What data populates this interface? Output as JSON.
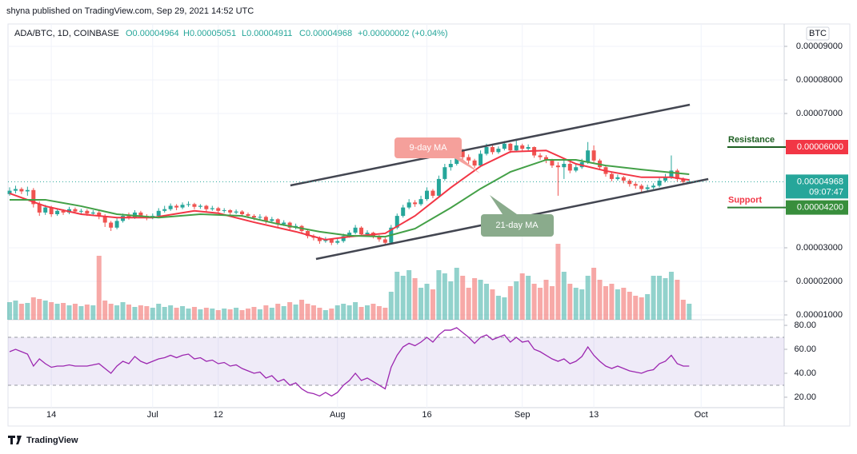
{
  "header": {
    "published": "shyna published on TradingView.com, Sep 29, 2021 14:52 UTC"
  },
  "chart_data": [
    {
      "type": "candlestick",
      "symbol": "ADA/BTC, 1D, COINBASE",
      "ohlc_legend": [
        "O0.00004964",
        "H0.00005051",
        "L0.00004911",
        "C0.00004968",
        "+0.00000002 (+0.04%)"
      ],
      "currency": "BTC",
      "xlim": [
        0,
        130
      ],
      "xticks": [
        {
          "value": 7,
          "label": "14"
        },
        {
          "value": 24,
          "label": "Jul"
        },
        {
          "value": 35,
          "label": "12"
        },
        {
          "value": 55,
          "label": "Aug"
        },
        {
          "value": 70,
          "label": "16"
        },
        {
          "value": 86,
          "label": "Sep"
        },
        {
          "value": 98,
          "label": "13"
        },
        {
          "value": 116,
          "label": "Oct"
        }
      ],
      "ylim": [
        8.57e-06,
        9.667e-05
      ],
      "yticks": [
        {
          "value": 9e-05,
          "label": "0.00009000"
        },
        {
          "value": 8e-05,
          "label": "0.00008000"
        },
        {
          "value": 7e-05,
          "label": "0.00007000"
        },
        {
          "value": 3e-05,
          "label": "0.00003000"
        },
        {
          "value": 2e-05,
          "label": "0.00002000"
        },
        {
          "value": 1e-05,
          "label": "0.00001000"
        }
      ],
      "grid": true,
      "up_color": "#26a69a",
      "down_color": "#ef5350",
      "open": [
        4.6e-05,
        4.7e-05,
        4.75e-05,
        4.68e-05,
        4.72e-05,
        4.3e-05,
        4.05e-05,
        4.2e-05,
        4e-05,
        4.1e-05,
        4.05e-05,
        4.15e-05,
        4.08e-05,
        4.1e-05,
        4.02e-05,
        4.05e-05,
        3.95e-05,
        3.75e-05,
        3.6e-05,
        3.8e-05,
        3.95e-05,
        3.9e-05,
        4.05e-05,
        3.95e-05,
        3.9e-05,
        3.95e-05,
        4.1e-05,
        4.15e-05,
        4.25e-05,
        4.2e-05,
        4.28e-05,
        4.3e-05,
        4.22e-05,
        4.25e-05,
        4.15e-05,
        4.18e-05,
        4.1e-05,
        4.12e-05,
        4.05e-05,
        4.08e-05,
        4e-05,
        3.95e-05,
        3.9e-05,
        3.92e-05,
        3.8e-05,
        3.85e-05,
        3.7e-05,
        3.75e-05,
        3.6e-05,
        3.65e-05,
        3.5e-05,
        3.35e-05,
        3.3e-05,
        3.2e-05,
        3.25e-05,
        3.15e-05,
        3.2e-05,
        3.35e-05,
        3.45e-05,
        3.6e-05,
        3.4e-05,
        3.45e-05,
        3.35e-05,
        3.25e-05,
        3.15e-05,
        3.6e-05,
        3.95e-05,
        4.2e-05,
        4.35e-05,
        4.3e-05,
        4.45e-05,
        4.7e-05,
        4.55e-05,
        5.05e-05,
        5.4e-05,
        5.5e-05,
        5.9e-05,
        5.7e-05,
        5.6e-05,
        5.45e-05,
        5.8e-05,
        6e-05,
        5.85e-05,
        5.95e-05,
        6.1e-05,
        5.9e-05,
        6.05e-05,
        5.95e-05,
        6e-05,
        5.75e-05,
        5.7e-05,
        5.6e-05,
        5.45e-05,
        5.4e-05,
        5.5e-05,
        5.3e-05,
        5.4e-05,
        5.55e-05,
        5.9e-05,
        5.6e-05,
        5.4e-05,
        5.2e-05,
        5.05e-05,
        5.1e-05,
        5e-05,
        4.9e-05,
        4.85e-05,
        4.75e-05,
        4.8e-05,
        4.85e-05,
        5e-05,
        5.1e-05,
        5.3e-05,
        5.05e-05,
        4.964e-05
      ],
      "high": [
        4.8e-05,
        4.85e-05,
        4.8e-05,
        4.82e-05,
        4.78e-05,
        4.38e-05,
        4.28e-05,
        4.25e-05,
        4.18e-05,
        4.15e-05,
        4.22e-05,
        4.2e-05,
        4.16e-05,
        4.15e-05,
        4.12e-05,
        4.1e-05,
        4e-05,
        3.8e-05,
        3.88e-05,
        4.02e-05,
        4.05e-05,
        4.12e-05,
        4.1e-05,
        4e-05,
        4.02e-05,
        4.18e-05,
        4.25e-05,
        4.32e-05,
        4.3e-05,
        4.35e-05,
        4.38e-05,
        4.34e-05,
        4.3e-05,
        4.28e-05,
        4.25e-05,
        4.22e-05,
        4.18e-05,
        4.15e-05,
        4.14e-05,
        4.12e-05,
        4.05e-05,
        4e-05,
        4e-05,
        3.96e-05,
        3.92e-05,
        3.88e-05,
        3.82e-05,
        3.78e-05,
        3.72e-05,
        3.68e-05,
        3.55e-05,
        3.4e-05,
        3.34e-05,
        3.32e-05,
        3.28e-05,
        3.28e-05,
        3.42e-05,
        3.52e-05,
        3.68e-05,
        3.64e-05,
        3.52e-05,
        3.48e-05,
        3.38e-05,
        3.3e-05,
        3.68e-05,
        4.02e-05,
        4.28e-05,
        4.45e-05,
        4.42e-05,
        4.55e-05,
        4.8e-05,
        4.75e-05,
        5.15e-05,
        5.5e-05,
        5.62e-05,
        6e-05,
        5.95e-05,
        5.78e-05,
        5.65e-05,
        5.9e-05,
        6.1e-05,
        6.05e-05,
        6.02e-05,
        6.18e-05,
        6.12e-05,
        6.25e-05,
        6.1e-05,
        6.08e-05,
        6.02e-05,
        5.82e-05,
        5.76e-05,
        5.65e-05,
        5.55e-05,
        5.6e-05,
        5.55e-05,
        5.48e-05,
        5.65e-05,
        6.15e-05,
        6.05e-05,
        5.65e-05,
        5.45e-05,
        5.25e-05,
        5.18e-05,
        5.14e-05,
        5.05e-05,
        4.95e-05,
        4.9e-05,
        4.88e-05,
        4.92e-05,
        5.08e-05,
        5.2e-05,
        5.75e-05,
        5.35e-05,
        5.1e-05,
        5.051e-05
      ],
      "low": [
        4.55e-05,
        4.62e-05,
        4.6e-05,
        4.55e-05,
        4.2e-05,
        3.95e-05,
        3.98e-05,
        3.92e-05,
        3.95e-05,
        3.98e-05,
        4e-05,
        4.02e-05,
        4e-05,
        3.95e-05,
        3.96e-05,
        3.85e-05,
        3.62e-05,
        3.5e-05,
        3.55e-05,
        3.75e-05,
        3.84e-05,
        3.86e-05,
        3.88e-05,
        3.82e-05,
        3.85e-05,
        3.92e-05,
        4.05e-05,
        4.1e-05,
        4.12e-05,
        4.15e-05,
        4.22e-05,
        4.15e-05,
        4.16e-05,
        4.08e-05,
        4.1e-05,
        4.02e-05,
        4.04e-05,
        3.98e-05,
        4e-05,
        3.92e-05,
        3.88e-05,
        3.82e-05,
        3.85e-05,
        3.72e-05,
        3.75e-05,
        3.62e-05,
        3.65e-05,
        3.52e-05,
        3.55e-05,
        3.42e-05,
        3.28e-05,
        3.22e-05,
        3.12e-05,
        3.15e-05,
        3.08e-05,
        3.1e-05,
        3.15e-05,
        3.3e-05,
        3.4e-05,
        3.34e-05,
        3.35e-05,
        3.28e-05,
        3.18e-05,
        3.08e-05,
        3.12e-05,
        3.55e-05,
        3.9e-05,
        4.15e-05,
        4.22e-05,
        4.25e-05,
        4.4e-05,
        4.48e-05,
        4.5e-05,
        5e-05,
        5.3e-05,
        5.45e-05,
        5.6e-05,
        5.5e-05,
        5.38e-05,
        5.4e-05,
        5.75e-05,
        5.78e-05,
        5.8e-05,
        5.9e-05,
        5.82e-05,
        5.85e-05,
        5.88e-05,
        5.9e-05,
        5.68e-05,
        5.62e-05,
        5.52e-05,
        5.38e-05,
        4.55e-05,
        5.05e-05,
        5.22e-05,
        5.25e-05,
        5.35e-05,
        5.5e-05,
        5.52e-05,
        5.32e-05,
        5.12e-05,
        4.98e-05,
        5e-05,
        4.92e-05,
        4.82e-05,
        4.76e-05,
        4.65e-05,
        4.7e-05,
        4.75e-05,
        4.8e-05,
        4.95e-05,
        5.05e-05,
        4.98e-05,
        4.9e-05,
        4.911e-05
      ],
      "close": [
        4.7e-05,
        4.75e-05,
        4.68e-05,
        4.72e-05,
        4.3e-05,
        4.05e-05,
        4.2e-05,
        4e-05,
        4.1e-05,
        4.05e-05,
        4.15e-05,
        4.08e-05,
        4.1e-05,
        4.02e-05,
        4.05e-05,
        3.95e-05,
        3.75e-05,
        3.6e-05,
        3.8e-05,
        3.95e-05,
        3.9e-05,
        4.05e-05,
        3.95e-05,
        3.9e-05,
        3.95e-05,
        4.1e-05,
        4.15e-05,
        4.25e-05,
        4.2e-05,
        4.28e-05,
        4.3e-05,
        4.22e-05,
        4.25e-05,
        4.15e-05,
        4.18e-05,
        4.1e-05,
        4.12e-05,
        4.05e-05,
        4.08e-05,
        4e-05,
        3.95e-05,
        3.9e-05,
        3.92e-05,
        3.8e-05,
        3.85e-05,
        3.7e-05,
        3.75e-05,
        3.6e-05,
        3.65e-05,
        3.5e-05,
        3.35e-05,
        3.3e-05,
        3.2e-05,
        3.25e-05,
        3.15e-05,
        3.2e-05,
        3.35e-05,
        3.45e-05,
        3.6e-05,
        3.4e-05,
        3.45e-05,
        3.35e-05,
        3.25e-05,
        3.15e-05,
        3.6e-05,
        3.95e-05,
        4.2e-05,
        4.35e-05,
        4.3e-05,
        4.45e-05,
        4.7e-05,
        4.55e-05,
        5.05e-05,
        5.4e-05,
        5.5e-05,
        5.9e-05,
        5.7e-05,
        5.6e-05,
        5.45e-05,
        5.8e-05,
        6e-05,
        5.85e-05,
        5.95e-05,
        6.1e-05,
        5.9e-05,
        6.05e-05,
        5.95e-05,
        6e-05,
        5.75e-05,
        5.7e-05,
        5.6e-05,
        5.45e-05,
        5.4e-05,
        5.5e-05,
        5.3e-05,
        5.4e-05,
        5.55e-05,
        5.9e-05,
        5.6e-05,
        5.4e-05,
        5.2e-05,
        5.05e-05,
        5.1e-05,
        5e-05,
        4.9e-05,
        4.85e-05,
        4.75e-05,
        4.8e-05,
        4.85e-05,
        5e-05,
        5.1e-05,
        5.3e-05,
        5.05e-05,
        4.96e-05,
        4.968e-05
      ],
      "volume": [
        22,
        24,
        20,
        21,
        28,
        26,
        24,
        22,
        20,
        21,
        18,
        20,
        17,
        19,
        18,
        80,
        24,
        20,
        18,
        22,
        19,
        16,
        18,
        17,
        15,
        20,
        16,
        18,
        15,
        17,
        14,
        16,
        13,
        15,
        14,
        12,
        14,
        13,
        15,
        12,
        14,
        16,
        13,
        18,
        15,
        20,
        17,
        22,
        19,
        25,
        20,
        18,
        15,
        12,
        14,
        18,
        20,
        18,
        22,
        16,
        18,
        20,
        17,
        15,
        35,
        60,
        55,
        62,
        52,
        40,
        45,
        38,
        62,
        58,
        48,
        65,
        55,
        40,
        52,
        50,
        45,
        38,
        30,
        28,
        42,
        48,
        58,
        55,
        45,
        40,
        50,
        42,
        95,
        60,
        45,
        40,
        38,
        55,
        65,
        50,
        42,
        45,
        38,
        40,
        35,
        30,
        28,
        32,
        55,
        55,
        52,
        60,
        50,
        25,
        20
      ],
      "series": [
        {
          "name": "9-day MA",
          "color": "#f23645",
          "x": [
            0,
            6,
            12,
            18,
            24,
            31,
            35,
            41,
            48,
            53,
            57,
            63,
            68,
            74,
            79,
            84,
            90,
            95,
            100,
            106,
            111,
            114
          ],
          "values": [
            4.62e-05,
            4.24e-05,
            4e-05,
            3.9e-05,
            3.9e-05,
            4.1e-05,
            4.03e-05,
            3.76e-05,
            3.48e-05,
            3.24e-05,
            3.33e-05,
            3.43e-05,
            3.95e-05,
            4.79e-05,
            5.43e-05,
            5.86e-05,
            5.9e-05,
            5.5e-05,
            5.29e-05,
            5.1e-05,
            5.1e-05,
            5.02e-05
          ]
        },
        {
          "name": "21-day MA",
          "color": "#43a047",
          "x": [
            0,
            6,
            12,
            18,
            25,
            32,
            39,
            45,
            52,
            57,
            63,
            68,
            74,
            79,
            84,
            90,
            95,
            100,
            106,
            111,
            114
          ],
          "values": [
            4.43e-05,
            4.43e-05,
            4.24e-05,
            4e-05,
            3.9e-05,
            4e-05,
            3.95e-05,
            3.71e-05,
            3.48e-05,
            3.36e-05,
            3.33e-05,
            3.57e-05,
            4.19e-05,
            4.76e-05,
            5.26e-05,
            5.62e-05,
            5.62e-05,
            5.45e-05,
            5.33e-05,
            5.24e-05,
            5.19e-05
          ]
        }
      ],
      "trendlines": [
        {
          "color": "#434651",
          "x": [
            47.1,
            114.1
          ],
          "values": [
            4.857e-05,
            7.262e-05
          ]
        },
        {
          "color": "#434651",
          "x": [
            51.4,
            117.2
          ],
          "values": [
            2.667e-05,
            5.048e-05
          ]
        }
      ],
      "levels": [
        {
          "name": "Resistance",
          "value": 6e-05,
          "label": "0.00006000",
          "text_color": "#1b5e20",
          "box_color": "#f23645",
          "line_color": "#1b5e20"
        },
        {
          "name": "Support",
          "value": 4.2e-05,
          "label": "0.00004200",
          "text_color": "#f23645",
          "box_color": "#388e3c",
          "line_color": "#2e7d32"
        }
      ],
      "last_price": {
        "value": 4.968e-05,
        "label": "0.00004968",
        "countdown": "09:07:47",
        "color": "#26a69a"
      }
    },
    {
      "type": "line",
      "color": "#9c27b0",
      "ylim": [
        11.3,
        84.7
      ],
      "yticks": [
        {
          "value": 80,
          "label": "80.00"
        },
        {
          "value": 60,
          "label": "60.00"
        },
        {
          "value": 40,
          "label": "40.00"
        },
        {
          "value": 20,
          "label": "20.00"
        }
      ],
      "band": [
        30,
        70
      ],
      "values": [
        58,
        60,
        58,
        56,
        46,
        52,
        48,
        45,
        46,
        46,
        47,
        46,
        46,
        46,
        47,
        48,
        44,
        40,
        46,
        50,
        48,
        54,
        50,
        48,
        50,
        52,
        53,
        55,
        53,
        55,
        56,
        52,
        53,
        50,
        51,
        48,
        49,
        46,
        47,
        44,
        42,
        40,
        41,
        36,
        38,
        33,
        35,
        30,
        32,
        27,
        24,
        23,
        21,
        24,
        21,
        24,
        30,
        34,
        40,
        34,
        36,
        33,
        30,
        27,
        45,
        55,
        62,
        65,
        63,
        66,
        70,
        66,
        72,
        76,
        76,
        78,
        74,
        70,
        65,
        70,
        72,
        68,
        70,
        72,
        66,
        70,
        66,
        67,
        60,
        58,
        55,
        52,
        50,
        52,
        48,
        50,
        54,
        62,
        55,
        50,
        46,
        44,
        46,
        44,
        42,
        41,
        40,
        42,
        43,
        48,
        50,
        55,
        48,
        46,
        46
      ]
    }
  ],
  "footer": {
    "brand": "TradingView"
  }
}
